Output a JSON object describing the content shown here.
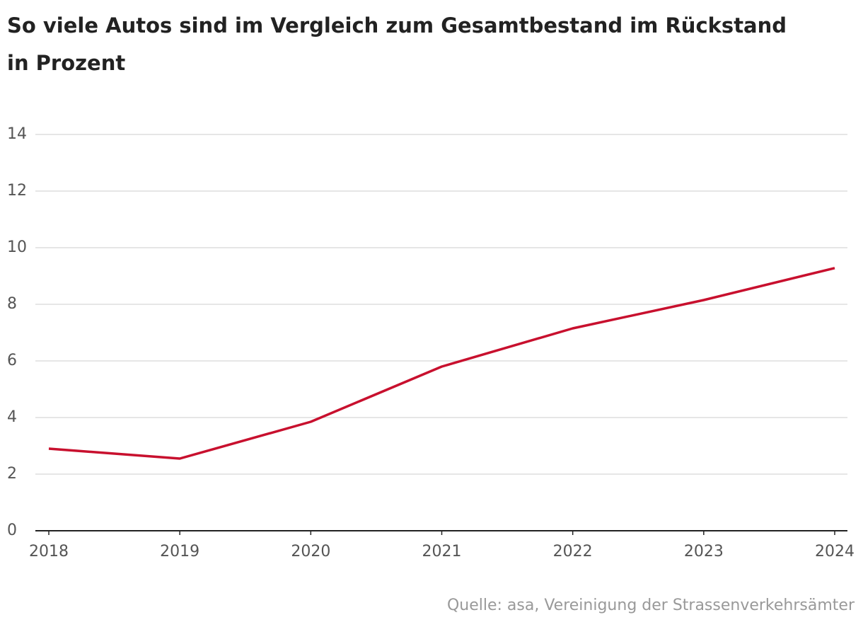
{
  "chart_data": {
    "type": "line",
    "title": "So viele Autos sind im Vergleich zum Gesamtbestand im Rückstand in Prozent",
    "source": "Quelle: asa, Vereinigung der Strassenverkehrsämter",
    "x": [
      2018,
      2019,
      2020,
      2021,
      2022,
      2023,
      2024
    ],
    "xlim": [
      2018,
      2024
    ],
    "xticks": [
      2018,
      2019,
      2020,
      2021,
      2022,
      2023,
      2024
    ],
    "series": [
      {
        "name": "Rückstand",
        "color": "#c8102e",
        "values": [
          2.9,
          2.55,
          3.85,
          5.8,
          7.15,
          8.15,
          9.28
        ]
      }
    ],
    "ylim": [
      0,
      14
    ],
    "yticks": [
      0,
      2,
      4,
      6,
      8,
      10,
      12,
      14
    ],
    "grid": true
  }
}
